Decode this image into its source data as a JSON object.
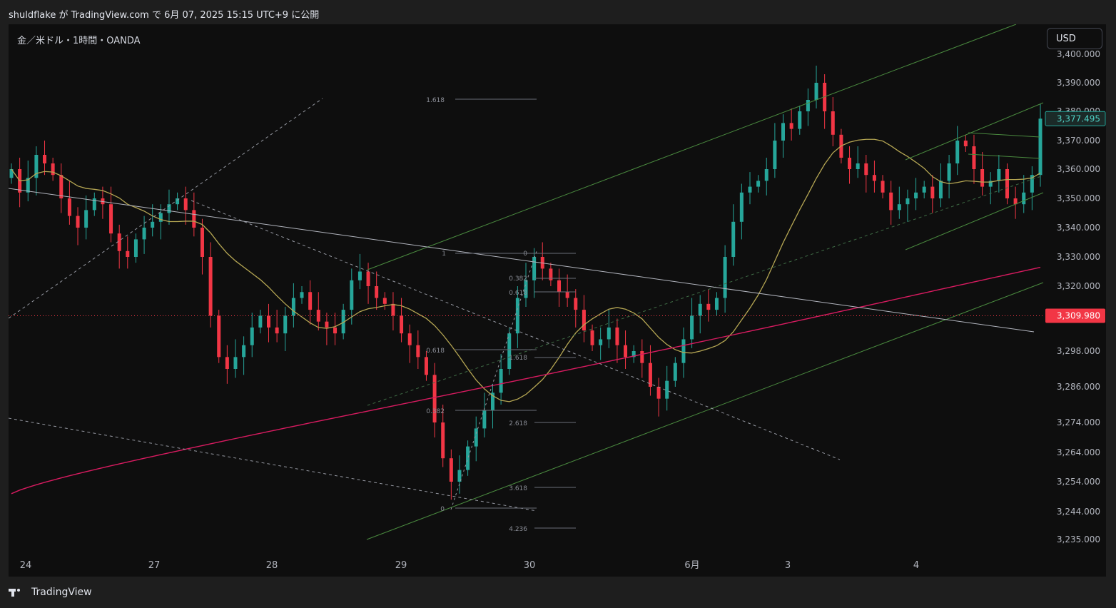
{
  "header": {
    "publish_text": "shuldflake が TradingView.com で 6月 07, 2025 15:15 UTC+9 に公開"
  },
  "chart": {
    "symbol_text": "金／米ドル・1時間・OANDA",
    "currency_label": "USD"
  },
  "footer": {
    "brand": "TradingView"
  },
  "colors": {
    "background": "#0e0e0e",
    "up": "#26a69a",
    "down": "#f23645",
    "ma_fast": "#b5a653",
    "ma_slow": "#d81b60",
    "channel": "#4a8a3f",
    "last_price_label": "#1b2a28",
    "current_line": "#f23645"
  },
  "chart_data": {
    "type": "candlestick",
    "x_ticks": [
      "24",
      "27",
      "28",
      "29",
      "30",
      "6月",
      "3",
      "4"
    ],
    "y_ticks": [
      "3,400.000",
      "3,390.000",
      "3,380.000",
      "3,370.000",
      "3,360.000",
      "3,350.000",
      "3,340.000",
      "3,330.000",
      "3,320.000",
      "3,298.000",
      "3,286.000",
      "3,274.000",
      "3,264.000",
      "3,254.000",
      "3,244.000",
      "3,235.000"
    ],
    "ylim": [
      3230,
      3410
    ],
    "last_price": {
      "label": "3,377.495",
      "value": 3377.495
    },
    "current_price": {
      "label": "3,309.980",
      "value": 3309.98
    },
    "fib_labels": [
      "1.618",
      "1",
      "0",
      "0.382",
      "0.618",
      "0.618",
      "1.618",
      "0.382",
      "2.618",
      "3.618",
      "0",
      "4.236"
    ],
    "close_path": [
      3360,
      3352,
      3357,
      3365,
      3362,
      3358,
      3350,
      3344,
      3340,
      3346,
      3350,
      3348,
      3338,
      3332,
      3330,
      3336,
      3340,
      3342,
      3345,
      3348,
      3350,
      3346,
      3340,
      3330,
      3310,
      3296,
      3292,
      3296,
      3300,
      3306,
      3310,
      3306,
      3304,
      3310,
      3316,
      3318,
      3312,
      3308,
      3306,
      3304,
      3312,
      3322,
      3325,
      3320,
      3316,
      3314,
      3310,
      3304,
      3300,
      3296,
      3290,
      3274,
      3262,
      3254,
      3258,
      3266,
      3272,
      3278,
      3284,
      3292,
      3304,
      3316,
      3322,
      3330,
      3326,
      3322,
      3318,
      3316,
      3312,
      3305,
      3300,
      3302,
      3306,
      3300,
      3296,
      3298,
      3294,
      3286,
      3282,
      3288,
      3294,
      3302,
      3310,
      3314,
      3312,
      3316,
      3330,
      3342,
      3352,
      3354,
      3356,
      3360,
      3370,
      3376,
      3374,
      3380,
      3384,
      3390,
      3380,
      3372,
      3364,
      3360,
      3362,
      3358,
      3356,
      3352,
      3346,
      3348,
      3350,
      3352,
      3354,
      3350,
      3356,
      3362,
      3370,
      3368,
      3360,
      3354,
      3356,
      3360,
      3350,
      3348,
      3352,
      3358,
      3377.495
    ]
  }
}
